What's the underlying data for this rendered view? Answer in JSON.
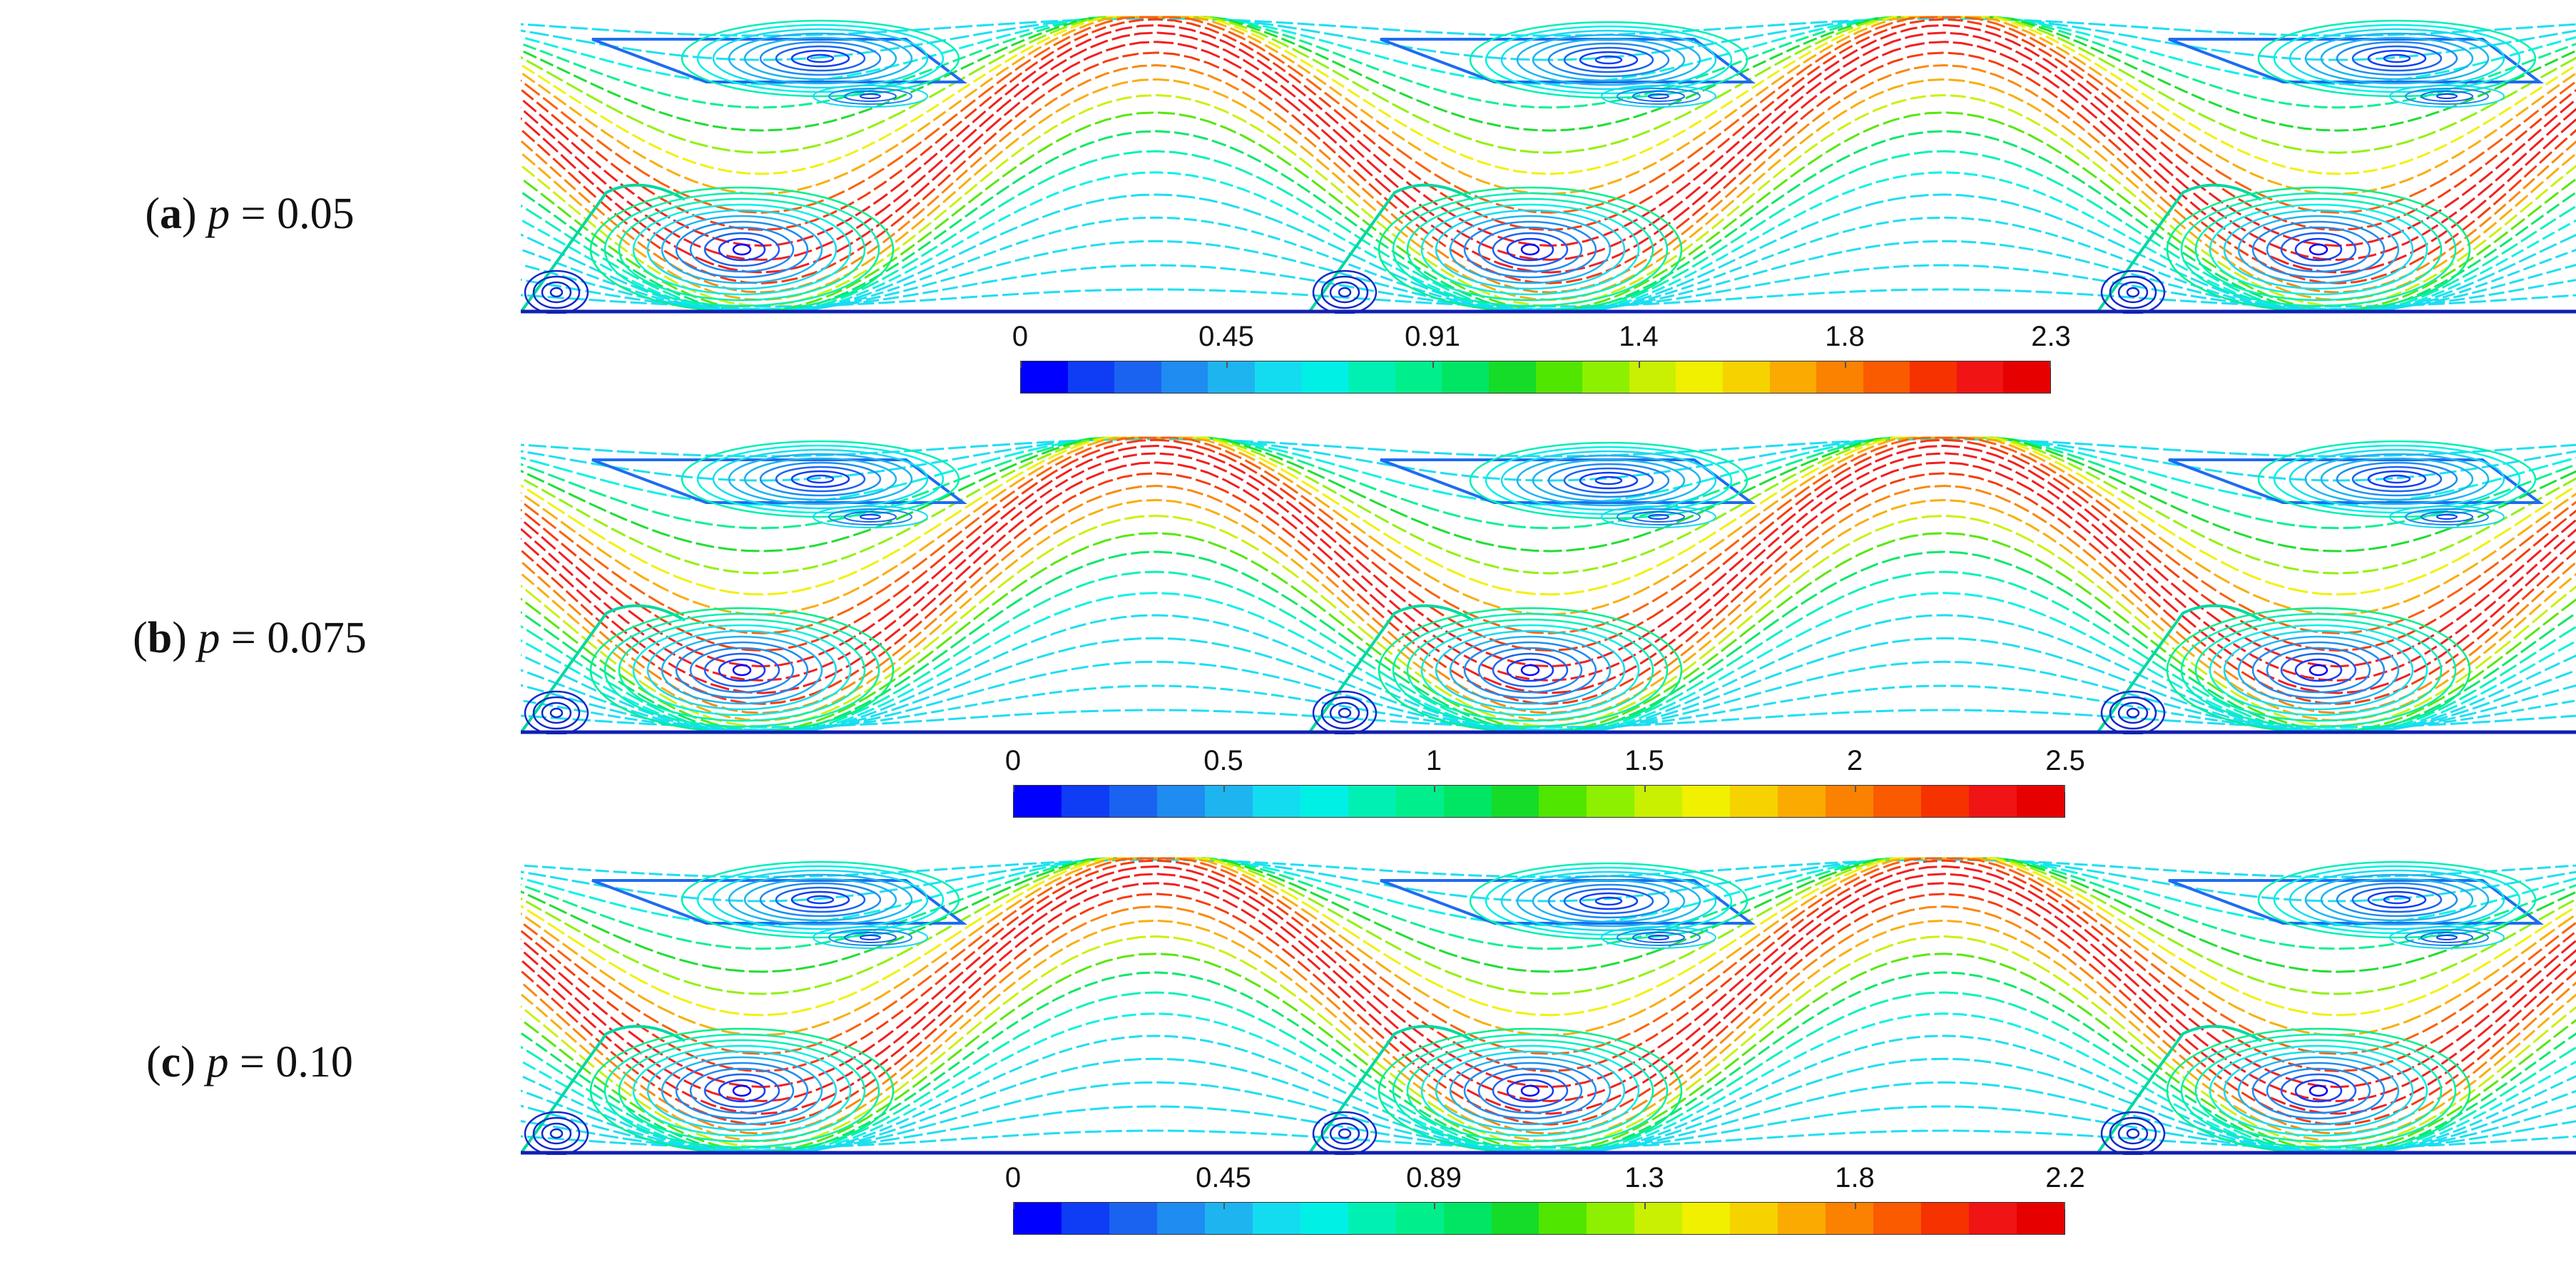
{
  "panels": [
    {
      "letter": "a",
      "param_symbol": "p",
      "param_value": "= 0.05",
      "colorbar_ticks": [
        "0",
        "0.45",
        "0.91",
        "1.4",
        "1.8",
        "2.3"
      ],
      "colorbar_max": 2.3
    },
    {
      "letter": "b",
      "param_symbol": "p",
      "param_value": "= 0.075",
      "colorbar_ticks": [
        "0",
        "0.5",
        "1",
        "1.5",
        "2",
        "2.5"
      ],
      "colorbar_max": 2.5
    },
    {
      "letter": "c",
      "param_symbol": "p",
      "param_value": "= 0.10",
      "colorbar_ticks": [
        "0",
        "0.45",
        "0.89",
        "1.3",
        "1.8",
        "2.2"
      ],
      "colorbar_max": 2.2
    }
  ],
  "colormap": [
    "#0000ff",
    "#0f3cf5",
    "#1a63f0",
    "#1e8cf0",
    "#1eb4f0",
    "#14dcf0",
    "#00f0e6",
    "#00f0b4",
    "#00ef8c",
    "#00e664",
    "#14dc28",
    "#50e600",
    "#8cf000",
    "#c8f000",
    "#f0f000",
    "#f5d200",
    "#faaa00",
    "#fa8200",
    "#fa5a00",
    "#f53200",
    "#f01414",
    "#e60000"
  ]
}
